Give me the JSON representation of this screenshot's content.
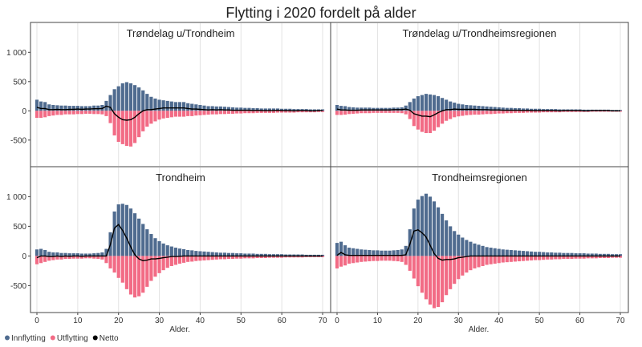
{
  "chart_data": {
    "type": "bar",
    "title": "Flytting i 2020 fordelt på alder",
    "xlabel": "Alder.",
    "xlim": [
      0,
      70
    ],
    "ylim": [
      -900,
      1100
    ],
    "yticks": [
      -500,
      0,
      500,
      1000
    ],
    "ytick_labels": [
      "-500",
      "0",
      "500",
      "1 000"
    ],
    "xticks": [
      0,
      10,
      20,
      30,
      40,
      50,
      60,
      70
    ],
    "grid": "vertical",
    "legend_position": "bottom-left",
    "series_meta": [
      {
        "name": "Innflytting",
        "color": "#4f6b8f"
      },
      {
        "name": "Utflytting",
        "color": "#f26b85"
      },
      {
        "name": "Netto",
        "color": "#000000"
      }
    ],
    "panels": [
      {
        "title": "Trøndelag u/Trondheim",
        "innflytting": [
          190,
          160,
          150,
          110,
          100,
          95,
          90,
          90,
          85,
          85,
          85,
          80,
          80,
          80,
          90,
          90,
          100,
          170,
          270,
          370,
          420,
          470,
          490,
          470,
          440,
          400,
          350,
          290,
          240,
          210,
          190,
          180,
          170,
          160,
          150,
          150,
          150,
          130,
          120,
          110,
          100,
          90,
          80,
          80,
          75,
          75,
          70,
          65,
          60,
          55,
          55,
          50,
          50,
          45,
          45,
          40,
          40,
          40,
          40,
          40,
          35,
          35,
          35,
          30,
          30,
          30,
          30,
          25,
          25,
          25,
          25
        ],
        "utflytting": [
          -120,
          -120,
          -110,
          -90,
          -80,
          -70,
          -70,
          -60,
          -60,
          -60,
          -55,
          -55,
          -50,
          -50,
          -55,
          -55,
          -60,
          -90,
          -210,
          -420,
          -530,
          -570,
          -600,
          -610,
          -550,
          -450,
          -350,
          -270,
          -220,
          -180,
          -150,
          -130,
          -120,
          -110,
          -100,
          -100,
          -100,
          -90,
          -90,
          -80,
          -75,
          -70,
          -65,
          -60,
          -60,
          -55,
          -55,
          -50,
          -50,
          -45,
          -45,
          -40,
          -40,
          -40,
          -35,
          -35,
          -35,
          -35,
          -35,
          -30,
          -30,
          -30,
          -30,
          -30,
          -25,
          -25,
          -25,
          -25,
          -25,
          -20,
          -20
        ],
        "netto": [
          60,
          40,
          40,
          20,
          20,
          25,
          20,
          20,
          25,
          25,
          30,
          25,
          30,
          30,
          35,
          35,
          40,
          80,
          60,
          -50,
          -110,
          -150,
          -160,
          -150,
          -110,
          -50,
          0,
          20,
          20,
          30,
          40,
          50,
          50,
          50,
          50,
          50,
          50,
          40,
          30,
          30,
          25,
          20,
          15,
          20,
          15,
          20,
          15,
          15,
          10,
          10,
          10,
          10,
          10,
          5,
          10,
          5,
          5,
          5,
          5,
          10,
          5,
          5,
          5,
          0,
          5,
          5,
          5,
          0,
          0,
          5,
          5
        ]
      },
      {
        "title": "Trøndelag u/Trondheimsregionen",
        "innflytting": [
          100,
          85,
          80,
          65,
          60,
          55,
          55,
          55,
          55,
          50,
          50,
          50,
          50,
          50,
          55,
          55,
          60,
          90,
          150,
          210,
          250,
          270,
          290,
          280,
          270,
          250,
          220,
          190,
          160,
          140,
          120,
          110,
          100,
          95,
          90,
          85,
          80,
          75,
          70,
          65,
          60,
          55,
          50,
          50,
          45,
          45,
          40,
          40,
          35,
          35,
          35,
          30,
          30,
          30,
          30,
          25,
          25,
          25,
          25,
          25,
          25,
          20,
          20,
          20,
          20,
          20,
          20,
          20,
          15,
          15,
          15
        ],
        "utflytting": [
          -70,
          -70,
          -65,
          -55,
          -50,
          -45,
          -40,
          -40,
          -40,
          -35,
          -35,
          -35,
          -35,
          -35,
          -35,
          -35,
          -40,
          -60,
          -140,
          -260,
          -320,
          -360,
          -380,
          -380,
          -340,
          -280,
          -220,
          -170,
          -140,
          -110,
          -95,
          -85,
          -75,
          -70,
          -65,
          -65,
          -60,
          -55,
          -55,
          -50,
          -45,
          -45,
          -40,
          -40,
          -35,
          -35,
          -35,
          -30,
          -30,
          -30,
          -30,
          -25,
          -25,
          -25,
          -25,
          -25,
          -20,
          -20,
          -20,
          -20,
          -20,
          -20,
          -20,
          -15,
          -15,
          -15,
          -15,
          -15,
          -15,
          -15,
          -15
        ],
        "netto": [
          30,
          15,
          15,
          10,
          10,
          10,
          15,
          15,
          15,
          15,
          15,
          15,
          15,
          15,
          20,
          20,
          20,
          30,
          10,
          -50,
          -70,
          -90,
          -90,
          -100,
          -70,
          -30,
          0,
          20,
          20,
          30,
          25,
          25,
          25,
          25,
          25,
          20,
          20,
          20,
          15,
          15,
          15,
          10,
          10,
          10,
          10,
          10,
          5,
          10,
          5,
          5,
          5,
          5,
          5,
          5,
          5,
          0,
          5,
          5,
          5,
          5,
          5,
          0,
          0,
          5,
          5,
          5,
          5,
          5,
          0,
          0,
          0
        ]
      },
      {
        "title": "Trondheim",
        "innflytting": [
          110,
          120,
          100,
          70,
          60,
          60,
          50,
          50,
          45,
          45,
          45,
          40,
          40,
          40,
          45,
          50,
          60,
          120,
          400,
          750,
          870,
          880,
          860,
          800,
          720,
          630,
          540,
          450,
          370,
          300,
          250,
          210,
          180,
          160,
          140,
          125,
          115,
          100,
          95,
          85,
          80,
          75,
          70,
          65,
          60,
          55,
          55,
          50,
          50,
          45,
          45,
          40,
          40,
          40,
          35,
          35,
          35,
          30,
          30,
          30,
          30,
          25,
          25,
          25,
          25,
          25,
          20,
          20,
          20,
          20,
          20
        ],
        "utflytting": [
          -140,
          -120,
          -100,
          -80,
          -70,
          -60,
          -60,
          -50,
          -50,
          -45,
          -45,
          -45,
          -40,
          -40,
          -45,
          -50,
          -60,
          -120,
          -210,
          -280,
          -370,
          -450,
          -560,
          -650,
          -700,
          -680,
          -620,
          -520,
          -420,
          -350,
          -290,
          -240,
          -200,
          -170,
          -150,
          -130,
          -115,
          -100,
          -95,
          -85,
          -80,
          -75,
          -70,
          -65,
          -60,
          -55,
          -55,
          -50,
          -50,
          -45,
          -45,
          -40,
          -40,
          -40,
          -35,
          -35,
          -35,
          -30,
          -30,
          -30,
          -30,
          -25,
          -25,
          -25,
          -25,
          -25,
          -20,
          -20,
          -20,
          -20,
          -20
        ],
        "netto": [
          -30,
          0,
          0,
          -10,
          -10,
          0,
          -10,
          0,
          -5,
          0,
          0,
          -5,
          0,
          0,
          0,
          0,
          0,
          0,
          190,
          470,
          530,
          430,
          300,
          150,
          20,
          -50,
          -80,
          -70,
          -50,
          -50,
          -40,
          -30,
          -20,
          -10,
          -10,
          -5,
          0,
          0,
          0,
          0,
          0,
          0,
          0,
          0,
          0,
          0,
          0,
          0,
          0,
          0,
          0,
          0,
          0,
          0,
          0,
          0,
          0,
          0,
          0,
          0,
          0,
          0,
          0,
          0,
          0,
          0,
          0,
          0,
          0,
          0,
          0
        ]
      },
      {
        "title": "Trondheimsregionen",
        "innflytting": [
          220,
          240,
          180,
          140,
          130,
          120,
          110,
          105,
          100,
          95,
          95,
          90,
          90,
          90,
          95,
          100,
          110,
          170,
          450,
          800,
          950,
          1010,
          1050,
          1000,
          920,
          820,
          710,
          600,
          500,
          420,
          360,
          310,
          270,
          240,
          210,
          190,
          170,
          150,
          140,
          130,
          120,
          110,
          105,
          100,
          95,
          90,
          85,
          80,
          75,
          70,
          70,
          65,
          60,
          60,
          55,
          55,
          50,
          50,
          50,
          45,
          45,
          45,
          40,
          40,
          40,
          35,
          35,
          35,
          30,
          30,
          30
        ],
        "utflytting": [
          -210,
          -180,
          -160,
          -130,
          -120,
          -110,
          -100,
          -95,
          -90,
          -85,
          -85,
          -80,
          -80,
          -80,
          -85,
          -90,
          -100,
          -150,
          -250,
          -380,
          -510,
          -620,
          -730,
          -820,
          -880,
          -860,
          -780,
          -660,
          -560,
          -470,
          -390,
          -330,
          -280,
          -240,
          -210,
          -190,
          -170,
          -150,
          -140,
          -130,
          -120,
          -110,
          -105,
          -100,
          -95,
          -90,
          -85,
          -80,
          -75,
          -70,
          -70,
          -65,
          -60,
          -60,
          -55,
          -55,
          -50,
          -50,
          -50,
          -45,
          -45,
          -45,
          -40,
          -40,
          -40,
          -35,
          -35,
          -35,
          -30,
          -30,
          -30
        ],
        "netto": [
          10,
          60,
          20,
          10,
          10,
          10,
          10,
          10,
          10,
          10,
          10,
          10,
          10,
          10,
          10,
          10,
          10,
          20,
          200,
          420,
          440,
          390,
          320,
          180,
          40,
          -40,
          -70,
          -60,
          -60,
          -50,
          -30,
          -20,
          -10,
          0,
          0,
          0,
          0,
          0,
          0,
          0,
          0,
          0,
          0,
          0,
          0,
          0,
          0,
          0,
          0,
          0,
          0,
          0,
          0,
          0,
          0,
          0,
          0,
          0,
          0,
          0,
          0,
          0,
          0,
          0,
          0,
          0,
          0,
          0,
          0,
          0,
          0
        ]
      }
    ]
  }
}
